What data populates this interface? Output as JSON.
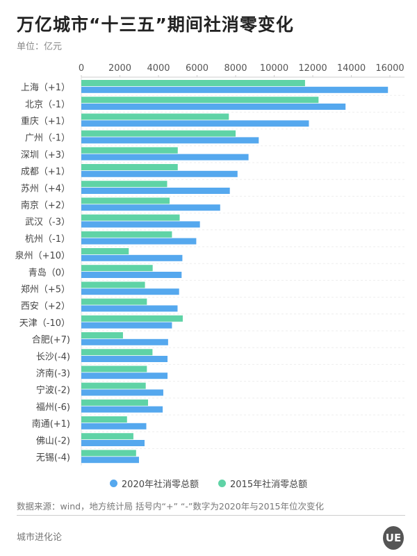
{
  "title": "万亿城市“十三五”期间社消零变化",
  "unit": "单位：亿元",
  "chart_data": {
    "type": "bar",
    "orientation": "horizontal",
    "title": "万亿城市“十三五”期间社消零变化",
    "xlim": [
      0,
      16000
    ],
    "xticks": [
      0,
      2000,
      4000,
      6000,
      8000,
      10000,
      12000,
      14000,
      16000
    ],
    "grid": true,
    "legend_position": "bottom",
    "categories": [
      "上海（+1）",
      "北京（-1）",
      "重庆（+1）",
      "广州（-1）",
      "深圳（+3）",
      "成都（+1）",
      "苏州（+4）",
      "南京（+2）",
      "武汉（-3）",
      "杭州（-1）",
      "泉州（+10）",
      "青岛（0）",
      "郑州（+5）",
      "西安（+2）",
      "天津（-10）",
      "合肥(+7)",
      "长沙(-4)",
      "济南(-3)",
      "宁波(-2)",
      "福州(-6)",
      "南通(+1)",
      "佛山(-2)",
      "无锡(-4)"
    ],
    "series": [
      {
        "name": "2015年社消零总额",
        "color": "#5fd3a6",
        "values": [
          11600,
          12300,
          7650,
          8000,
          5000,
          5000,
          4450,
          4580,
          5100,
          4700,
          2460,
          3700,
          3300,
          3400,
          5260,
          2160,
          3690,
          3400,
          3340,
          3460,
          2370,
          2700,
          2840
        ]
      },
      {
        "name": "2020年社消零总额",
        "color": "#55a8ee",
        "values": [
          15900,
          13700,
          11800,
          9200,
          8670,
          8100,
          7700,
          7200,
          6150,
          5960,
          5240,
          5200,
          5070,
          4990,
          4700,
          4500,
          4470,
          4470,
          4250,
          4220,
          3370,
          3280,
          2990
        ]
      }
    ],
    "legend_order": [
      1,
      0
    ]
  },
  "source": "数据来源：wind，地方统计局 括号内“+” “-”数字为2020年与2015年位次变化",
  "footer": "城市进化论",
  "logo_text": "UE"
}
